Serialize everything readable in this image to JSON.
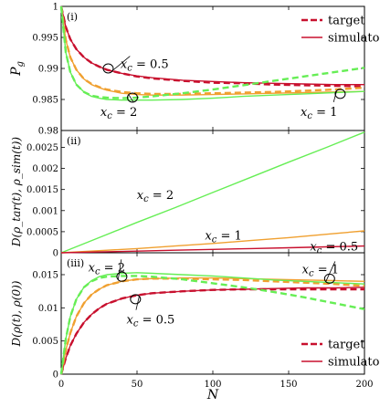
{
  "colors": {
    "xc05": "#c8102e",
    "xc1": "#f0a030",
    "xc2": "#66ee55"
  },
  "chart_data": [
    {
      "panel": "(i)",
      "type": "line",
      "xlabel": "",
      "ylabel": "P_g",
      "xlim": [
        0,
        200
      ],
      "ylim": [
        0.98,
        1.0
      ],
      "xticks": [
        0,
        50,
        100,
        150,
        200
      ],
      "yticks": [
        0.98,
        0.985,
        0.99,
        0.995,
        1
      ],
      "ytick_labels": [
        "0.98",
        "0.985",
        "0.99",
        "0.995",
        "1"
      ],
      "show_xtick_labels": false,
      "legend": {
        "position": "top-right",
        "entries": [
          {
            "label": "target",
            "style": "dashed"
          },
          {
            "label": "simulator",
            "style": "solid"
          }
        ]
      },
      "annotations": [
        {
          "text": "x_c = 0.5",
          "x": 55,
          "y": 0.9908,
          "marker_x": 31,
          "marker_y": 0.99
        },
        {
          "text": "x_c = 2",
          "x": 38,
          "y": 0.9831,
          "marker_x": 47,
          "marker_y": 0.9853
        },
        {
          "text": "x_c = 1",
          "x": 170,
          "y": 0.9831,
          "marker_x": 184,
          "marker_y": 0.9859
        }
      ],
      "x": [
        0,
        3,
        6,
        10,
        15,
        20,
        25,
        30,
        40,
        50,
        60,
        80,
        100,
        120,
        140,
        160,
        180,
        200
      ],
      "series": [
        {
          "name": "x_c = 0.5",
          "key": "xc05",
          "style": "dashed",
          "values": [
            1.0,
            0.9967,
            0.9947,
            0.9931,
            0.9918,
            0.9909,
            0.9903,
            0.9898,
            0.9892,
            0.9887,
            0.9884,
            0.988,
            0.9877,
            0.9876,
            0.9874,
            0.9873,
            0.9872,
            0.9871
          ]
        },
        {
          "name": "x_c = 0.5",
          "key": "xc05",
          "style": "solid",
          "values": [
            1.0,
            0.9967,
            0.9947,
            0.9931,
            0.9918,
            0.9909,
            0.9903,
            0.9898,
            0.9892,
            0.9888,
            0.9885,
            0.9881,
            0.9879,
            0.9877,
            0.9876,
            0.9875,
            0.9874,
            0.9874
          ]
        },
        {
          "name": "x_c = 1",
          "key": "xc1",
          "style": "dashed",
          "values": [
            1.0,
            0.9946,
            0.9918,
            0.9898,
            0.9883,
            0.9875,
            0.987,
            0.9866,
            0.9862,
            0.986,
            0.9859,
            0.9859,
            0.986,
            0.9861,
            0.9862,
            0.9864,
            0.9866,
            0.9869
          ]
        },
        {
          "name": "x_c = 1",
          "key": "xc1",
          "style": "solid",
          "values": [
            1.0,
            0.9946,
            0.9918,
            0.9898,
            0.9883,
            0.9874,
            0.9869,
            0.9865,
            0.986,
            0.9858,
            0.9857,
            0.9857,
            0.9858,
            0.9859,
            0.986,
            0.9861,
            0.9862,
            0.9863
          ]
        },
        {
          "name": "x_c = 2",
          "key": "xc2",
          "style": "dashed",
          "values": [
            1.0,
            0.9926,
            0.9894,
            0.9874,
            0.9862,
            0.9856,
            0.9854,
            0.9853,
            0.9852,
            0.9853,
            0.9855,
            0.986,
            0.9866,
            0.9873,
            0.988,
            0.9887,
            0.9894,
            0.9901
          ]
        },
        {
          "name": "x_c = 2",
          "key": "xc2",
          "style": "solid",
          "values": [
            1.0,
            0.9926,
            0.9894,
            0.9874,
            0.9862,
            0.9855,
            0.9852,
            0.985,
            0.9849,
            0.9849,
            0.9849,
            0.985,
            0.9852,
            0.9855,
            0.9857,
            0.9859,
            0.9861,
            0.9863
          ]
        }
      ]
    },
    {
      "panel": "(ii)",
      "type": "line",
      "xlabel": "",
      "ylabel": "D(ρ_tar(t), ρ_sim(t))",
      "xlim": [
        0,
        200
      ],
      "ylim": [
        0,
        0.0029
      ],
      "xticks": [
        0,
        50,
        100,
        150,
        200
      ],
      "yticks": [
        0,
        0.0005,
        0.001,
        0.0015,
        0.002,
        0.0025
      ],
      "ytick_labels": [
        "0",
        "0.0005",
        "0.001",
        "0.0015",
        "0.002",
        "0.0025"
      ],
      "show_xtick_labels": false,
      "annotations": [
        {
          "text": "x_c = 2",
          "x": 62,
          "y": 0.00138
        },
        {
          "text": "x_c = 1",
          "x": 107,
          "y": 0.00042
        },
        {
          "text": "x_c = 0.5",
          "x": 180,
          "y": 0.00016
        }
      ],
      "x": [
        0,
        25,
        50,
        75,
        100,
        125,
        150,
        175,
        200
      ],
      "series": [
        {
          "name": "x_c = 2",
          "key": "xc2",
          "style": "solid",
          "values": [
            0,
            0.00036,
            0.00072,
            0.00107,
            0.00143,
            0.00179,
            0.00215,
            0.0025,
            0.00286
          ]
        },
        {
          "name": "x_c = 1",
          "key": "xc1",
          "style": "solid",
          "values": [
            0,
            5e-05,
            0.0001,
            0.00016,
            0.00022,
            0.00029,
            0.00036,
            0.00044,
            0.00052
          ]
        },
        {
          "name": "x_c = 0.5",
          "key": "xc05",
          "style": "solid",
          "values": [
            0,
            2e-05,
            4e-05,
            6e-05,
            8e-05,
            0.0001,
            0.00012,
            0.00014,
            0.00016
          ]
        }
      ]
    },
    {
      "panel": "(iii)",
      "type": "line",
      "xlabel": "N",
      "ylabel": "D(ρ(t), ρ(0))",
      "xlim": [
        0,
        200
      ],
      "ylim": [
        0,
        0.0183
      ],
      "xticks": [
        0,
        50,
        100,
        150,
        200
      ],
      "xtick_labels": [
        "0",
        "50",
        "100",
        "150",
        "200"
      ],
      "yticks": [
        0,
        0.005,
        0.01,
        0.015
      ],
      "ytick_labels": [
        "0",
        "0.005",
        "0.01",
        "0.015"
      ],
      "show_xtick_labels": true,
      "legend": {
        "position": "bottom-right",
        "entries": [
          {
            "label": "target",
            "style": "dashed"
          },
          {
            "label": "simulator",
            "style": "solid"
          }
        ]
      },
      "annotations": [
        {
          "text": "x_c = 2",
          "x": 30,
          "y": 0.0162,
          "marker_x": 40,
          "marker_y": 0.0147
        },
        {
          "text": "x_c = 0.5",
          "x": 59,
          "y": 0.0083,
          "marker_x": 49,
          "marker_y": 0.0113
        },
        {
          "text": "x_c = 1",
          "x": 171,
          "y": 0.0159,
          "marker_x": 177,
          "marker_y": 0.0144
        }
      ],
      "x": [
        0,
        3,
        6,
        10,
        15,
        20,
        25,
        30,
        40,
        50,
        60,
        80,
        100,
        120,
        140,
        160,
        180,
        200
      ],
      "series": [
        {
          "name": "x_c = 0.5",
          "key": "xc05",
          "style": "dashed",
          "values": [
            0,
            0.0024,
            0.0043,
            0.0061,
            0.0078,
            0.009,
            0.0099,
            0.0106,
            0.0114,
            0.0119,
            0.0122,
            0.0125,
            0.0127,
            0.0128,
            0.0128,
            0.0128,
            0.0128,
            0.0128
          ]
        },
        {
          "name": "x_c = 0.5",
          "key": "xc05",
          "style": "solid",
          "values": [
            0,
            0.0024,
            0.0043,
            0.0061,
            0.0078,
            0.009,
            0.0099,
            0.0106,
            0.0114,
            0.0119,
            0.0122,
            0.0125,
            0.0127,
            0.0128,
            0.0129,
            0.013,
            0.013,
            0.0131
          ]
        },
        {
          "name": "x_c = 1",
          "key": "xc1",
          "style": "dashed",
          "values": [
            0,
            0.0036,
            0.0062,
            0.0087,
            0.0107,
            0.012,
            0.0128,
            0.0134,
            0.014,
            0.0143,
            0.0144,
            0.0144,
            0.0143,
            0.0142,
            0.014,
            0.0138,
            0.0136,
            0.0133
          ]
        },
        {
          "name": "x_c = 1",
          "key": "xc1",
          "style": "solid",
          "values": [
            0,
            0.0036,
            0.0062,
            0.0087,
            0.0107,
            0.012,
            0.0128,
            0.0134,
            0.014,
            0.0143,
            0.0144,
            0.0145,
            0.0145,
            0.0144,
            0.0143,
            0.0142,
            0.0141,
            0.014
          ]
        },
        {
          "name": "x_c = 2",
          "key": "xc2",
          "style": "dashed",
          "values": [
            0,
            0.0053,
            0.0087,
            0.0113,
            0.0131,
            0.014,
            0.0145,
            0.0147,
            0.0148,
            0.0148,
            0.0147,
            0.0143,
            0.0137,
            0.0131,
            0.0124,
            0.0116,
            0.0107,
            0.0098
          ]
        },
        {
          "name": "x_c = 2",
          "key": "xc2",
          "style": "solid",
          "values": [
            0,
            0.0053,
            0.0087,
            0.0113,
            0.0131,
            0.0141,
            0.0147,
            0.015,
            0.0152,
            0.0153,
            0.0152,
            0.015,
            0.0148,
            0.0145,
            0.0142,
            0.014,
            0.0138,
            0.0136
          ]
        }
      ]
    }
  ]
}
